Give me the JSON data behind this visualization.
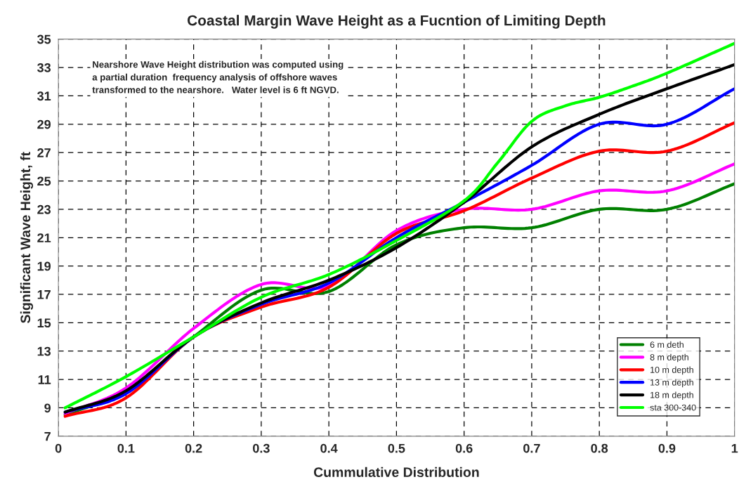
{
  "chart_data": {
    "type": "line",
    "title": "Coastal Margin Wave Height as a Fucntion of Limiting Depth",
    "xlabel": "Cummulative Distribution",
    "ylabel": "Significant Wave Height, ft",
    "x": [
      0.01,
      0.1,
      0.2,
      0.3,
      0.4,
      0.5,
      0.6,
      0.7,
      0.8,
      0.9,
      1.0
    ],
    "series": [
      {
        "name": "6 m deth",
        "color": "#008000",
        "values": [
          8.5,
          10.2,
          14.0,
          17.3,
          17.2,
          20.5,
          21.7,
          21.7,
          23.0,
          23.0,
          24.8
        ]
      },
      {
        "name": "8 m depth",
        "color": "#ff00ff",
        "values": [
          8.6,
          10.4,
          14.6,
          17.7,
          17.6,
          21.5,
          23.0,
          23.0,
          24.3,
          24.3,
          26.2
        ]
      },
      {
        "name": "10 m depth",
        "color": "#ff0000",
        "values": [
          8.4,
          9.7,
          14.0,
          16.1,
          17.5,
          21.3,
          22.9,
          25.2,
          27.1,
          27.1,
          29.1
        ]
      },
      {
        "name": "13 m depth",
        "color": "#0000ff",
        "values": [
          8.7,
          10.0,
          14.0,
          16.3,
          17.8,
          21.0,
          23.5,
          26.1,
          29.0,
          29.0,
          31.5
        ]
      },
      {
        "name": "18 m depth",
        "color": "#000000",
        "values": [
          8.7,
          10.2,
          14.0,
          16.4,
          18.0,
          20.3,
          23.5,
          27.4,
          29.7,
          31.5,
          33.2
        ]
      },
      {
        "name": "sta 300-340",
        "color": "#00ff00",
        "x": [
          0.01,
          0.1,
          0.2,
          0.3,
          0.4,
          0.5,
          0.6,
          0.65,
          0.7,
          0.75,
          0.8,
          0.85,
          0.9,
          1.0
        ],
        "values": [
          9.0,
          11.2,
          14.0,
          16.8,
          18.4,
          20.8,
          23.6,
          26.3,
          29.2,
          30.3,
          30.9,
          31.7,
          32.6,
          34.7
        ]
      }
    ],
    "xlim": [
      0,
      1
    ],
    "xticks": [
      0,
      0.1,
      0.2,
      0.3,
      0.4,
      0.5,
      0.6,
      0.7,
      0.8,
      0.9,
      1
    ],
    "ylim": [
      7,
      35
    ],
    "yticks": [
      7,
      9,
      11,
      13,
      15,
      17,
      19,
      21,
      23,
      25,
      27,
      29,
      31,
      33,
      35
    ],
    "grid": true,
    "legend": "bottom right",
    "marker": "none",
    "line_style": "solid",
    "annotations": [
      "Nearshore Wave Height distribution was computed using\na partial duration  frequency analysis of offshore waves\ntransformed to the nearshore.   Water level is 6 ft NGVD."
    ]
  }
}
